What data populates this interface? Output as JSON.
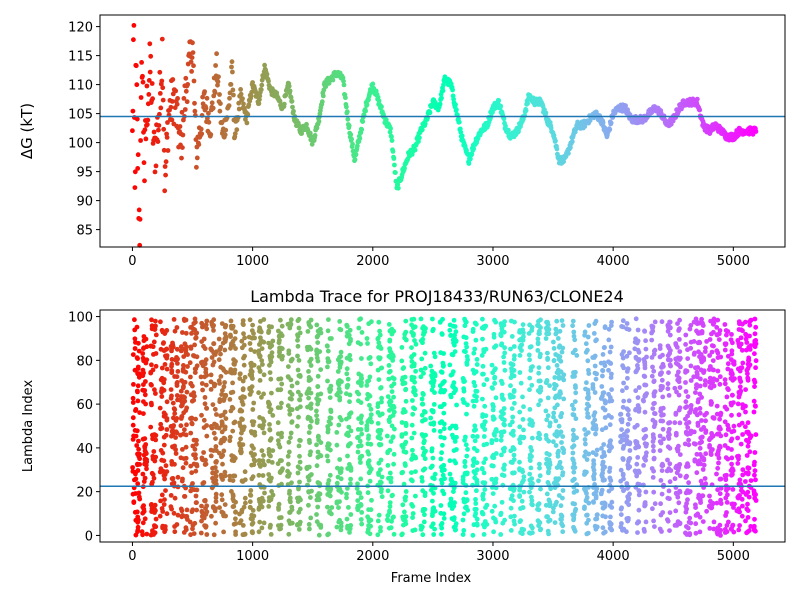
{
  "chart_data": [
    {
      "type": "scatter",
      "title": "",
      "xlabel": "",
      "ylabel": "ΔG (kT)",
      "xlim": [
        -270,
        5430
      ],
      "ylim": [
        82,
        122
      ],
      "xticks": [
        0,
        1000,
        2000,
        3000,
        4000,
        5000
      ],
      "yticks": [
        85,
        90,
        95,
        100,
        105,
        110,
        115,
        120
      ],
      "hline": 104.5,
      "colormap": "rainbow (red at frame 0 → violet at last frame)",
      "anchors": [
        [
          0,
          100
        ],
        [
          10,
          120
        ],
        [
          20,
          90
        ],
        [
          30,
          113
        ],
        [
          40,
          101
        ],
        [
          60,
          84
        ],
        [
          80,
          116
        ],
        [
          100,
          95
        ],
        [
          120,
          106
        ],
        [
          150,
          113
        ],
        [
          180,
          98
        ],
        [
          220,
          104
        ],
        [
          250,
          117
        ],
        [
          270,
          92
        ],
        [
          300,
          105
        ],
        [
          350,
          108
        ],
        [
          400,
          99
        ],
        [
          450,
          110
        ],
        [
          500,
          117
        ],
        [
          530,
          98
        ],
        [
          600,
          107
        ],
        [
          650,
          103
        ],
        [
          700,
          113
        ],
        [
          750,
          101
        ],
        [
          800,
          106
        ],
        [
          830,
          113
        ],
        [
          850,
          101
        ],
        [
          900,
          108
        ],
        [
          950,
          104
        ],
        [
          1000,
          110
        ],
        [
          1050,
          107
        ],
        [
          1100,
          113
        ],
        [
          1150,
          109
        ],
        [
          1200,
          108
        ],
        [
          1250,
          106
        ],
        [
          1300,
          110
        ],
        [
          1350,
          104
        ],
        [
          1400,
          102
        ],
        [
          1450,
          103
        ],
        [
          1500,
          100
        ],
        [
          1550,
          104
        ],
        [
          1600,
          110
        ],
        [
          1650,
          111
        ],
        [
          1700,
          112
        ],
        [
          1750,
          111
        ],
        [
          1800,
          103
        ],
        [
          1850,
          97
        ],
        [
          1900,
          102
        ],
        [
          1950,
          107
        ],
        [
          2000,
          110
        ],
        [
          2050,
          107
        ],
        [
          2100,
          104
        ],
        [
          2150,
          102
        ],
        [
          2200,
          92
        ],
        [
          2250,
          95
        ],
        [
          2300,
          98
        ],
        [
          2350,
          99
        ],
        [
          2400,
          102
        ],
        [
          2450,
          104
        ],
        [
          2500,
          107
        ],
        [
          2550,
          106
        ],
        [
          2600,
          111
        ],
        [
          2650,
          110
        ],
        [
          2700,
          105
        ],
        [
          2750,
          100
        ],
        [
          2800,
          97
        ],
        [
          2850,
          100
        ],
        [
          2900,
          102
        ],
        [
          2950,
          103
        ],
        [
          3000,
          106
        ],
        [
          3050,
          107
        ],
        [
          3100,
          103
        ],
        [
          3150,
          101
        ],
        [
          3200,
          102
        ],
        [
          3250,
          104
        ],
        [
          3300,
          108
        ],
        [
          3350,
          107
        ],
        [
          3400,
          107
        ],
        [
          3450,
          104
        ],
        [
          3500,
          102
        ],
        [
          3550,
          97
        ],
        [
          3600,
          97
        ],
        [
          3650,
          100
        ],
        [
          3700,
          103
        ],
        [
          3750,
          103
        ],
        [
          3800,
          104
        ],
        [
          3850,
          105
        ],
        [
          3900,
          104
        ],
        [
          3950,
          101
        ],
        [
          4000,
          105
        ],
        [
          4050,
          106
        ],
        [
          4100,
          106
        ],
        [
          4150,
          104
        ],
        [
          4200,
          104
        ],
        [
          4250,
          104
        ],
        [
          4300,
          105
        ],
        [
          4350,
          106
        ],
        [
          4400,
          105
        ],
        [
          4450,
          103
        ],
        [
          4500,
          104
        ],
        [
          4550,
          106
        ],
        [
          4600,
          107
        ],
        [
          4650,
          107
        ],
        [
          4700,
          107
        ],
        [
          4750,
          103
        ],
        [
          4800,
          102
        ],
        [
          4850,
          103
        ],
        [
          4900,
          102
        ],
        [
          4950,
          101
        ],
        [
          5000,
          101
        ],
        [
          5050,
          102
        ],
        [
          5100,
          102
        ],
        [
          5190,
          102
        ]
      ]
    },
    {
      "type": "scatter",
      "title": "Lambda Trace for PROJ18433/RUN63/CLONE24",
      "xlabel": "Frame Index",
      "ylabel": "Lambda Index",
      "xlim": [
        -270,
        5430
      ],
      "ylim": [
        -3,
        103
      ],
      "xticks": [
        0,
        1000,
        2000,
        3000,
        4000,
        5000
      ],
      "yticks": [
        0,
        20,
        40,
        60,
        80,
        100
      ],
      "hline": 22.5,
      "colormap": "rainbow (red at frame 0 → violet at last frame)",
      "x_max": 5190,
      "y_range": [
        0,
        99
      ]
    }
  ]
}
